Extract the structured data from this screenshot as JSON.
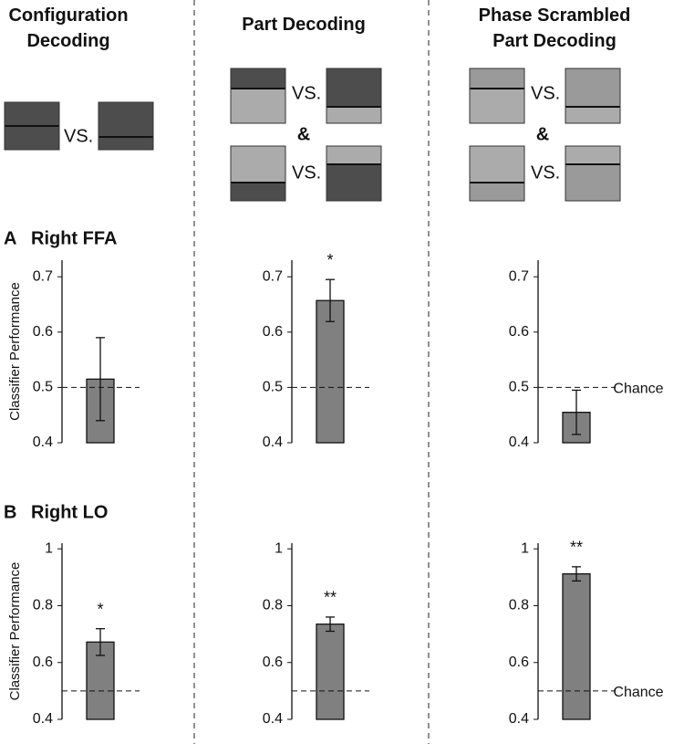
{
  "columns": [
    {
      "title": "Configuration Decoding",
      "labels": [
        "VS."
      ]
    },
    {
      "title": "Part Decoding",
      "labels": [
        "VS.",
        "&",
        "VS."
      ]
    },
    {
      "title": "Phase Scrambled Part Decoding",
      "labels": [
        "VS.",
        "&",
        "VS."
      ]
    }
  ],
  "rows": [
    {
      "letter": "A",
      "label": "Right FFA"
    },
    {
      "letter": "B",
      "label": "Right LO"
    }
  ],
  "chart_data": [
    {
      "type": "bar",
      "ylabel": "Classifier Performance",
      "categories": [
        null
      ],
      "values": [
        0.515
      ],
      "errors": [
        0.075
      ],
      "color": "#808080",
      "ylim": [
        0.4,
        0.73
      ],
      "yticks": [
        0.4,
        0.5,
        0.6,
        0.7
      ],
      "chance": 0.5
    },
    {
      "type": "bar",
      "categories": [
        null
      ],
      "values": [
        0.657
      ],
      "errors": [
        0.038
      ],
      "color": "#808080",
      "ylim": [
        0.4,
        0.73
      ],
      "yticks": [
        0.4,
        0.5,
        0.6,
        0.7
      ],
      "chance": 0.5,
      "annotation": "*"
    },
    {
      "type": "bar",
      "categories": [
        null
      ],
      "values": [
        0.455
      ],
      "errors": [
        0.04
      ],
      "color": "#808080",
      "ylim": [
        0.4,
        0.73
      ],
      "yticks": [
        0.4,
        0.5,
        0.6,
        0.7
      ],
      "chance": 0.5,
      "chance_label": "Chance"
    },
    {
      "type": "bar",
      "ylabel": "Classifier Performance",
      "categories": [
        null
      ],
      "values": [
        0.672
      ],
      "errors": [
        0.047
      ],
      "color": "#808080",
      "ylim": [
        0.4,
        1.02
      ],
      "yticks": [
        0.4,
        0.6,
        0.8,
        1
      ],
      "chance": 0.5,
      "annotation": "*"
    },
    {
      "type": "bar",
      "categories": [
        null
      ],
      "values": [
        0.735
      ],
      "errors": [
        0.025
      ],
      "color": "#808080",
      "ylim": [
        0.4,
        1.02
      ],
      "yticks": [
        0.4,
        0.6,
        0.8,
        1
      ],
      "chance": 0.5,
      "annotation": "**"
    },
    {
      "type": "bar",
      "categories": [
        null
      ],
      "values": [
        0.912
      ],
      "errors": [
        0.025
      ],
      "color": "#808080",
      "ylim": [
        0.4,
        1.02
      ],
      "yticks": [
        0.4,
        0.6,
        0.8,
        1
      ],
      "chance": 0.5,
      "annotation": "**",
      "chance_label": "Chance"
    }
  ]
}
